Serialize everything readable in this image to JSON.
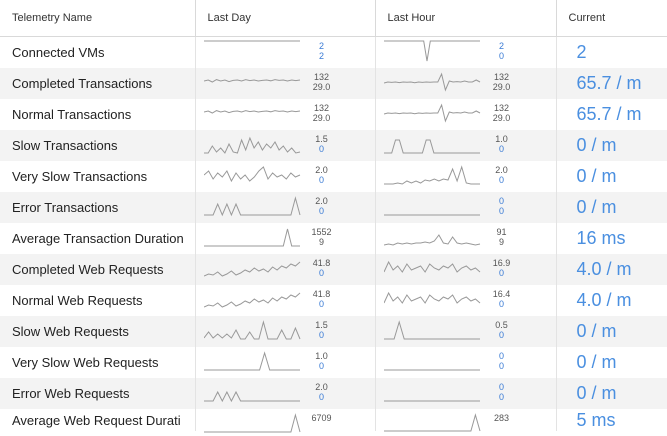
{
  "header": {
    "name": "Telemetry Name",
    "day": "Last Day",
    "hour": "Last Hour",
    "current": "Current"
  },
  "rows": [
    {
      "name": "Connected VMs",
      "day_max": "2",
      "day_min": "2",
      "hour_max": "2",
      "hour_min": "0",
      "current": "2"
    },
    {
      "name": "Completed Transactions",
      "day_max": "132",
      "day_min": "29.0",
      "hour_max": "132",
      "hour_min": "29.0",
      "current": "65.7 / m"
    },
    {
      "name": "Normal Transactions",
      "day_max": "132",
      "day_min": "29.0",
      "hour_max": "132",
      "hour_min": "29.0",
      "current": "65.7 / m"
    },
    {
      "name": "Slow Transactions",
      "day_max": "1.5",
      "day_min": "0",
      "hour_max": "1.0",
      "hour_min": "0",
      "current": "0 / m"
    },
    {
      "name": "Very Slow Transactions",
      "day_max": "2.0",
      "day_min": "0",
      "hour_max": "2.0",
      "hour_min": "0",
      "current": "0 / m"
    },
    {
      "name": "Error Transactions",
      "day_max": "2.0",
      "day_min": "0",
      "hour_max": "0",
      "hour_min": "0",
      "current": "0 / m"
    },
    {
      "name": "Average Transaction Duration",
      "day_max": "1552",
      "day_min": "9",
      "hour_max": "91",
      "hour_min": "9",
      "current": "16 ms"
    },
    {
      "name": "Completed Web Requests",
      "day_max": "41.8",
      "day_min": "0",
      "hour_max": "16.9",
      "hour_min": "0",
      "current": "4.0 / m"
    },
    {
      "name": "Normal Web Requests",
      "day_max": "41.8",
      "day_min": "0",
      "hour_max": "16.4",
      "hour_min": "0",
      "current": "4.0 / m"
    },
    {
      "name": "Slow Web Requests",
      "day_max": "1.5",
      "day_min": "0",
      "hour_max": "0.5",
      "hour_min": "0",
      "current": "0 / m"
    },
    {
      "name": "Very Slow Web Requests",
      "day_max": "1.0",
      "day_min": "0",
      "hour_max": "0",
      "hour_min": "0",
      "current": "0 / m"
    },
    {
      "name": "Error Web Requests",
      "day_max": "2.0",
      "day_min": "0",
      "hour_max": "0",
      "hour_min": "0",
      "current": "0 / m"
    },
    {
      "name": "Average Web Request Durati",
      "day_max": "6709",
      "day_min": "",
      "hour_max": "283",
      "hour_min": "",
      "current": "5 ms"
    }
  ],
  "sparks": {
    "flat_top": [
      1,
      1,
      1,
      1,
      1,
      1,
      1,
      1,
      1,
      1,
      1,
      1,
      1,
      1,
      1,
      1,
      1,
      1,
      1,
      1
    ],
    "vm_hour": [
      1,
      1,
      1,
      1,
      1,
      1,
      1,
      1,
      1,
      1,
      1,
      1,
      1,
      0,
      1,
      1,
      1,
      1,
      1,
      1,
      1,
      1,
      1,
      1,
      1,
      1,
      1,
      1,
      1,
      1
    ],
    "trans_day": [
      0.55,
      0.6,
      0.5,
      0.62,
      0.55,
      0.6,
      0.52,
      0.58,
      0.6,
      0.55,
      0.62,
      0.57,
      0.6,
      0.55,
      0.58,
      0.6,
      0.56,
      0.62,
      0.58,
      0.6,
      0.55,
      0.6,
      0.57,
      0.6
    ],
    "trans_hour": [
      0.45,
      0.5,
      0.48,
      0.5,
      0.47,
      0.5,
      0.49,
      0.5,
      0.46,
      0.5,
      0.48,
      0.5,
      0.49,
      0.5,
      0.5,
      0.9,
      0.1,
      0.55,
      0.5,
      0.52,
      0.5,
      0.55,
      0.5,
      0.5,
      0.6,
      0.5
    ],
    "slow_day": [
      0.05,
      0.05,
      0.4,
      0.1,
      0.3,
      0.05,
      0.5,
      0.1,
      0.05,
      0.7,
      0.2,
      0.8,
      0.3,
      0.6,
      0.2,
      0.5,
      0.3,
      0.6,
      0.2,
      0.4,
      0.1,
      0.3,
      0.05,
      0.1
    ],
    "slow_hour": [
      0.05,
      0.05,
      0.05,
      0.7,
      0.7,
      0.05,
      0.05,
      0.05,
      0.05,
      0.05,
      0.05,
      0.7,
      0.7,
      0.05,
      0.05,
      0.05,
      0.05,
      0.05,
      0.05,
      0.05,
      0.05,
      0.05,
      0.05,
      0.05,
      0.05,
      0.05
    ],
    "vslow_day": [
      0.5,
      0.7,
      0.3,
      0.6,
      0.4,
      0.7,
      0.2,
      0.6,
      0.3,
      0.5,
      0.2,
      0.4,
      0.7,
      0.9,
      0.3,
      0.6,
      0.4,
      0.5,
      0.3,
      0.6,
      0.4,
      0.5
    ],
    "vslow_hour": [
      0.05,
      0.05,
      0.05,
      0.1,
      0.05,
      0.2,
      0.1,
      0.2,
      0.1,
      0.25,
      0.2,
      0.3,
      0.2,
      0.3,
      0.25,
      0.8,
      0.2,
      0.9,
      0.1,
      0.05,
      0.05,
      0.05
    ],
    "err_day": [
      0.05,
      0.05,
      0.05,
      0.6,
      0.05,
      0.6,
      0.05,
      0.6,
      0.05,
      0.05,
      0.05,
      0.05,
      0.05,
      0.05,
      0.05,
      0.05,
      0.05,
      0.05,
      0.05,
      0.05,
      0.9,
      0.05
    ],
    "flat_low": [
      0.05,
      0.05,
      0.05,
      0.05,
      0.05,
      0.05,
      0.05,
      0.05,
      0.05,
      0.05,
      0.05,
      0.05,
      0.05,
      0.05,
      0.05,
      0.05,
      0.05,
      0.05,
      0.05,
      0.05
    ],
    "avg_day": [
      0.05,
      0.05,
      0.05,
      0.05,
      0.05,
      0.05,
      0.05,
      0.05,
      0.05,
      0.05,
      0.05,
      0.05,
      0.05,
      0.05,
      0.05,
      0.05,
      0.05,
      0.05,
      0.05,
      0.05,
      0.9,
      0.05,
      0.05,
      0.05
    ],
    "avg_hour": [
      0.1,
      0.15,
      0.1,
      0.2,
      0.15,
      0.2,
      0.15,
      0.2,
      0.2,
      0.25,
      0.2,
      0.3,
      0.6,
      0.2,
      0.15,
      0.5,
      0.2,
      0.15,
      0.2,
      0.15,
      0.1,
      0.15
    ],
    "web_day": [
      0.1,
      0.2,
      0.15,
      0.3,
      0.1,
      0.2,
      0.35,
      0.15,
      0.25,
      0.4,
      0.3,
      0.5,
      0.35,
      0.45,
      0.3,
      0.55,
      0.4,
      0.6,
      0.5,
      0.7,
      0.6,
      0.8
    ],
    "web_hour": [
      0.3,
      0.8,
      0.4,
      0.6,
      0.3,
      0.7,
      0.4,
      0.5,
      0.6,
      0.3,
      0.7,
      0.5,
      0.4,
      0.6,
      0.5,
      0.7,
      0.3,
      0.5,
      0.6,
      0.4,
      0.5,
      0.3
    ],
    "slowweb_day": [
      0.1,
      0.4,
      0.1,
      0.3,
      0.1,
      0.3,
      0.1,
      0.5,
      0.05,
      0.05,
      0.4,
      0.05,
      0.05,
      0.9,
      0.05,
      0.05,
      0.05,
      0.5,
      0.05,
      0.05,
      0.6,
      0.05
    ],
    "slowweb_hour": [
      0.05,
      0.05,
      0.05,
      0.9,
      0.05,
      0.05,
      0.05,
      0.05,
      0.05,
      0.05,
      0.05,
      0.05,
      0.05,
      0.05,
      0.05,
      0.05,
      0.05,
      0.05,
      0.05,
      0.05
    ],
    "vslowweb_day": [
      0.05,
      0.05,
      0.05,
      0.05,
      0.05,
      0.05,
      0.05,
      0.05,
      0.05,
      0.05,
      0.05,
      0.05,
      0.9,
      0.05,
      0.05,
      0.05,
      0.05,
      0.05,
      0.05,
      0.05
    ],
    "errweb_day": [
      0.05,
      0.05,
      0.05,
      0.5,
      0.05,
      0.5,
      0.05,
      0.5,
      0.05,
      0.05,
      0.05,
      0.05,
      0.05,
      0.05,
      0.05,
      0.05,
      0.05,
      0.05,
      0.05,
      0.05,
      0.05,
      0.05
    ],
    "avgweb_day": [
      0.05,
      0.05,
      0.05,
      0.05,
      0.05,
      0.05,
      0.05,
      0.05,
      0.05,
      0.05,
      0.05,
      0.05,
      0.05,
      0.05,
      0.05,
      0.05,
      0.05,
      0.05,
      0.05,
      0.05,
      0.9,
      0.05
    ],
    "avgweb_hour": [
      0.1,
      0.1,
      0.1,
      0.1,
      0.1,
      0.1,
      0.1,
      0.1,
      0.1,
      0.1,
      0.1,
      0.1,
      0.1,
      0.1,
      0.1,
      0.1,
      0.1,
      0.1,
      0.1,
      0.1,
      0.9,
      0.1
    ]
  },
  "row_sparks": [
    [
      "flat_top",
      "vm_hour"
    ],
    [
      "trans_day",
      "trans_hour"
    ],
    [
      "trans_day",
      "trans_hour"
    ],
    [
      "slow_day",
      "slow_hour"
    ],
    [
      "vslow_day",
      "vslow_hour"
    ],
    [
      "err_day",
      "flat_low"
    ],
    [
      "avg_day",
      "avg_hour"
    ],
    [
      "web_day",
      "web_hour"
    ],
    [
      "web_day",
      "web_hour"
    ],
    [
      "slowweb_day",
      "slowweb_hour"
    ],
    [
      "vslowweb_day",
      "flat_low"
    ],
    [
      "errweb_day",
      "flat_low"
    ],
    [
      "avgweb_day",
      "avgweb_hour"
    ]
  ],
  "colors": {
    "spark": "#999999",
    "spark_blue": "#4a8fe0",
    "value_blue": "#3a7bd5"
  }
}
